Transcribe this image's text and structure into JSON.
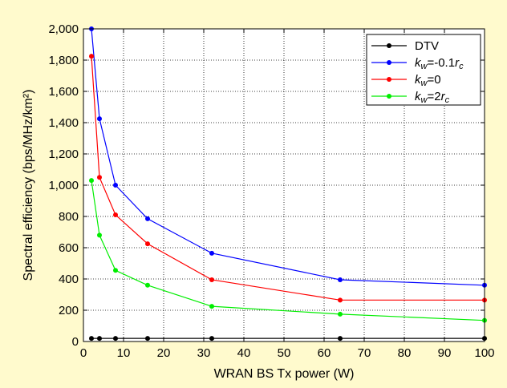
{
  "chart_data": {
    "type": "line",
    "title": "",
    "xlabel": "WRAN BS Tx power (W)",
    "ylabel": "Spectral efficiency (bps/MHz/km²)",
    "xlim": [
      0,
      100
    ],
    "ylim": [
      0,
      2000
    ],
    "xticks": [
      0,
      10,
      20,
      30,
      40,
      50,
      60,
      70,
      80,
      90,
      100
    ],
    "yticks": [
      0,
      200,
      400,
      600,
      800,
      1000,
      1200,
      1400,
      1600,
      1800,
      2000
    ],
    "xtick_labels": [
      "0",
      "10",
      "20",
      "30",
      "40",
      "50",
      "60",
      "70",
      "80",
      "90",
      "100"
    ],
    "ytick_labels": [
      "0",
      "200",
      "400",
      "600",
      "800",
      "1,000",
      "1,200",
      "1,400",
      "1,600",
      "1,800",
      "2,000"
    ],
    "grid": true,
    "legend_position": "top-right",
    "series": [
      {
        "name": "DTV",
        "color": "#000000",
        "x": [
          2,
          4,
          8,
          16,
          32,
          64,
          100
        ],
        "y": [
          20,
          20,
          20,
          20,
          20,
          20,
          20
        ]
      },
      {
        "name": "kw=-0.1rc",
        "color": "#0000ff",
        "x": [
          2,
          4,
          8,
          16,
          32,
          64,
          100
        ],
        "y": [
          2000,
          1425,
          1000,
          785,
          565,
          395,
          360
        ]
      },
      {
        "name": "kw=0",
        "color": "#ff0000",
        "x": [
          2,
          4,
          8,
          16,
          32,
          64,
          100
        ],
        "y": [
          1825,
          1050,
          810,
          625,
          395,
          265,
          265
        ]
      },
      {
        "name": "kw=2rc",
        "color": "#00ee00",
        "x": [
          2,
          4,
          8,
          16,
          32,
          64,
          100
        ],
        "y": [
          1030,
          680,
          455,
          360,
          225,
          175,
          135
        ]
      }
    ]
  }
}
